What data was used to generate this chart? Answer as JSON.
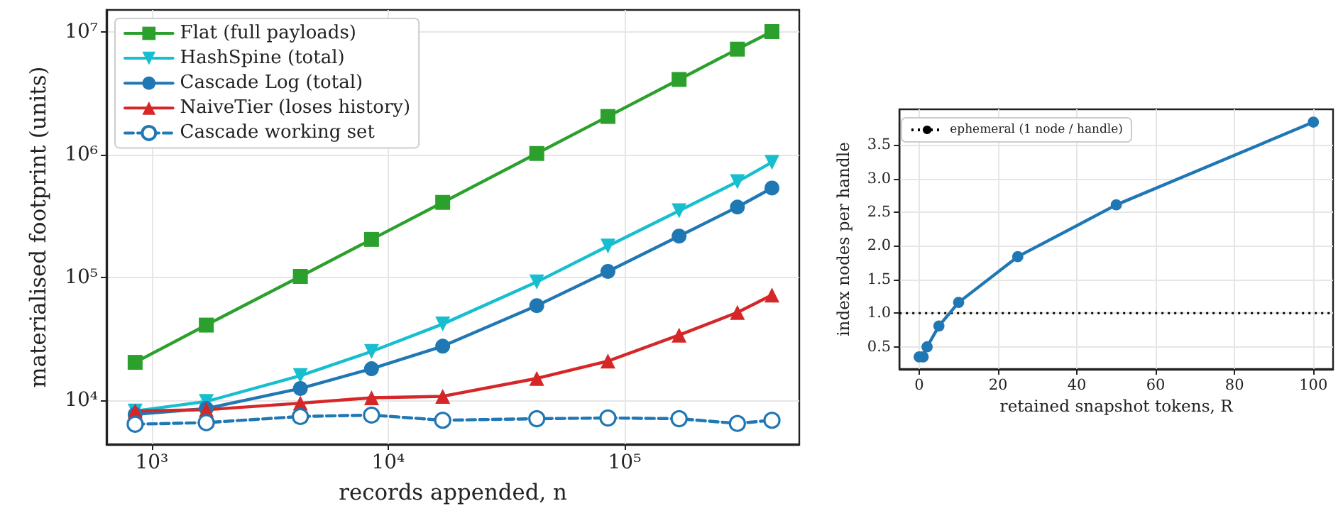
{
  "chart_data": [
    {
      "type": "line",
      "xlabel": "records appended, n",
      "ylabel": "materialised footprint (units)",
      "log": "xy",
      "grid": true,
      "legend": "top left",
      "x": [
        850,
        1700,
        4250,
        8500,
        17000,
        42500,
        85000,
        170000,
        300000,
        420000
      ],
      "xlim": [
        643,
        548000
      ],
      "ylim": [
        4400,
        15000000
      ],
      "xticks": [
        {
          "value": 1000,
          "label": "10³"
        },
        {
          "value": 10000,
          "label": "10⁴"
        },
        {
          "value": 100000,
          "label": "10⁵"
        }
      ],
      "yticks": [
        {
          "value": 10000,
          "label": "10⁴"
        },
        {
          "value": 100000,
          "label": "10⁵"
        },
        {
          "value": 1000000,
          "label": "10⁶"
        },
        {
          "value": 10000000,
          "label": "10⁷"
        }
      ],
      "series": [
        {
          "name": "Flat (full payloads)",
          "color": "#2ca02c",
          "marker": "square",
          "line_style": "solid",
          "values": [
            20400,
            41000,
            102000,
            204000,
            408000,
            1020000,
            2040000,
            4080000,
            7200000,
            10000000
          ]
        },
        {
          "name": "HashSpine (total)",
          "color": "#17becf",
          "marker": "triangle_down",
          "line_style": "solid",
          "values": [
            8200,
            9800,
            15900,
            25000,
            41800,
            92000,
            180000,
            349000,
            601000,
            865000
          ]
        },
        {
          "name": "Cascade Log (total)",
          "color": "#1f77b4",
          "marker": "circle",
          "line_style": "solid",
          "values": [
            7700,
            8600,
            12500,
            18100,
            27600,
            59000,
            112000,
            217000,
            374000,
            534000
          ]
        },
        {
          "name": "NaiveTier (loses history)",
          "color": "#d62728",
          "marker": "triangle",
          "line_style": "solid",
          "values": [
            8200,
            8400,
            9500,
            10500,
            10800,
            15100,
            20900,
            34000,
            52000,
            72000
          ]
        },
        {
          "name": "Cascade working set",
          "color": "#1f77b4",
          "marker": "circle_open",
          "line_style": "dashed",
          "values": [
            6400,
            6600,
            7400,
            7600,
            6900,
            7100,
            7200,
            7100,
            6500,
            6900
          ]
        }
      ]
    },
    {
      "type": "line",
      "xlabel": "retained snapshot tokens, R",
      "ylabel": "index nodes per handle",
      "grid": true,
      "legend": "top left",
      "x": [
        0,
        1,
        2,
        5,
        10,
        25,
        50,
        100
      ],
      "xlim": [
        -5,
        105
      ],
      "ylim": [
        0.17,
        4.03
      ],
      "xticks": [
        0,
        20,
        40,
        60,
        80,
        100
      ],
      "yticks": [
        0.5,
        {
          "value": 1,
          "label": "1.0"
        },
        1.5,
        {
          "value": 2,
          "label": "2.0"
        },
        2.5,
        {
          "value": 3,
          "label": "3.0"
        },
        3.5
      ],
      "ref_lines": [
        {
          "axis": "y",
          "value": 1.0,
          "label": "ephemeral (1 node / handle)",
          "color": "#000000",
          "line_style": "dotted"
        }
      ],
      "series": [
        {
          "color": "#1f77b4",
          "marker": "circle",
          "line_style": "solid",
          "values": [
            0.35,
            0.35,
            0.5,
            0.81,
            1.16,
            1.84,
            2.61,
            3.84
          ]
        }
      ]
    }
  ]
}
